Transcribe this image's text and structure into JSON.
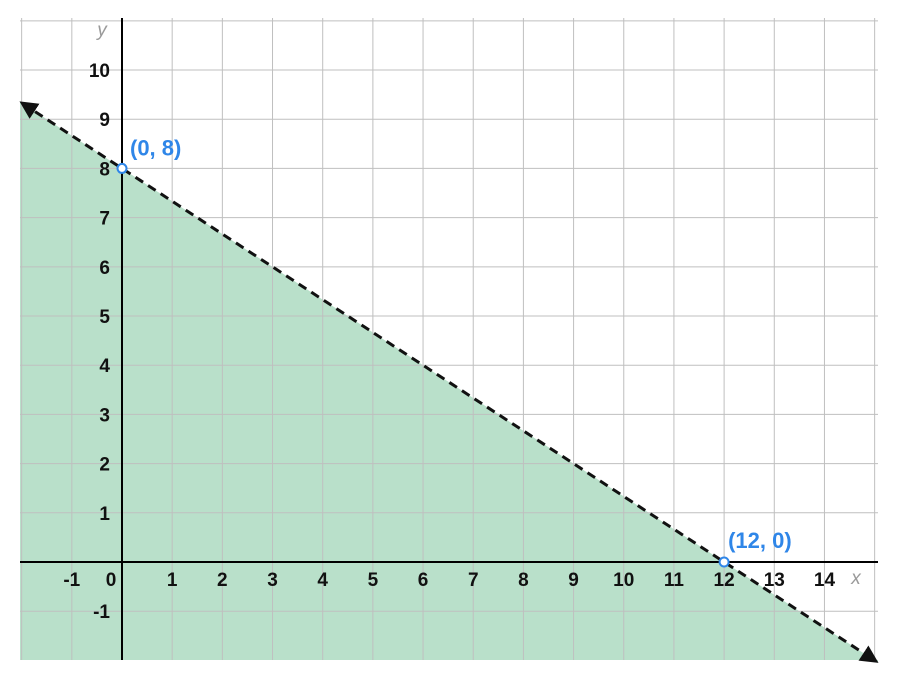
{
  "chart_data": {
    "type": "line",
    "title": "",
    "xlabel": "x",
    "ylabel": "y",
    "xlim": [
      -2,
      15
    ],
    "ylim": [
      -2,
      11
    ],
    "grid": true,
    "x_ticks": [
      -1,
      0,
      1,
      2,
      3,
      4,
      5,
      6,
      7,
      8,
      9,
      10,
      11,
      12,
      13,
      14
    ],
    "y_ticks": [
      -1,
      1,
      2,
      3,
      4,
      5,
      6,
      7,
      8,
      9,
      10
    ],
    "boundary_line": {
      "style": "dashed",
      "arrows": "both",
      "through": [
        [
          0,
          8
        ],
        [
          12,
          0
        ]
      ]
    },
    "shaded_region": "below",
    "points": [
      {
        "x": 0,
        "y": 8,
        "label": "(0, 8)",
        "marker": "open"
      },
      {
        "x": 12,
        "y": 0,
        "label": "(12, 0)",
        "marker": "open"
      }
    ],
    "colors": {
      "fill": "#b9e0ca",
      "grid": "#bfbfbf",
      "axis": "#000000",
      "line": "#111111",
      "point": "#2f86e8"
    }
  }
}
